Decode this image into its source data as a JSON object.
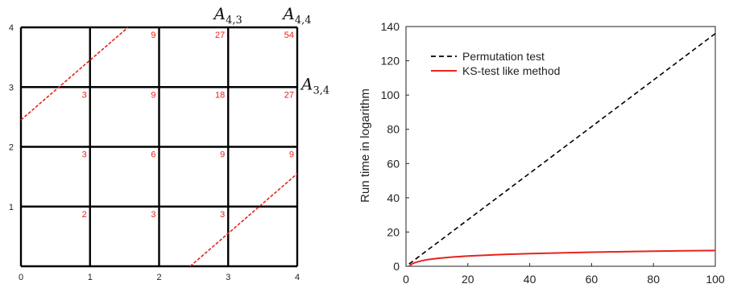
{
  "chart_data": [
    {
      "type": "grid",
      "xlim": [
        0,
        4
      ],
      "ylim": [
        0,
        4
      ],
      "x_ticks": [
        "0",
        "1",
        "2",
        "3",
        "4"
      ],
      "y_ticks": [
        "0",
        "1",
        "2",
        "3",
        "4"
      ],
      "cell_labels": [
        {
          "col": 1,
          "row": 1,
          "value": "2"
        },
        {
          "col": 2,
          "row": 1,
          "value": "3"
        },
        {
          "col": 3,
          "row": 1,
          "value": "3"
        },
        {
          "col": 1,
          "row": 2,
          "value": "3"
        },
        {
          "col": 2,
          "row": 2,
          "value": "6"
        },
        {
          "col": 3,
          "row": 2,
          "value": "9"
        },
        {
          "col": 4,
          "row": 2,
          "value": "9"
        },
        {
          "col": 1,
          "row": 3,
          "value": "3"
        },
        {
          "col": 2,
          "row": 3,
          "value": "9"
        },
        {
          "col": 3,
          "row": 3,
          "value": "18"
        },
        {
          "col": 4,
          "row": 3,
          "value": "27"
        },
        {
          "col": 2,
          "row": 4,
          "value": "9"
        },
        {
          "col": 3,
          "row": 4,
          "value": "27"
        },
        {
          "col": 4,
          "row": 4,
          "value": "54"
        }
      ],
      "corner_labels": [
        {
          "base": "A",
          "sub": "4,3",
          "x": 3,
          "y": 4
        },
        {
          "base": "A",
          "sub": "4,4",
          "x": 4,
          "y": 4
        },
        {
          "base": "A",
          "sub": "3,4",
          "x": 4,
          "y": 3
        }
      ],
      "dashed_lines": [
        {
          "x": [
            0,
            1.55
          ],
          "y": [
            2.45,
            4.0
          ]
        },
        {
          "x": [
            2.45,
            4.0
          ],
          "y": [
            0,
            1.55
          ]
        }
      ],
      "colors": {
        "grid": "#000000",
        "labels": "#e8231c",
        "dashed": "#e8231c"
      }
    },
    {
      "type": "line",
      "xlabel": "",
      "ylabel": "Run time in logarithm",
      "xlim": [
        0,
        100
      ],
      "ylim": [
        0,
        140
      ],
      "x_ticks": [
        0,
        20,
        40,
        60,
        80,
        100
      ],
      "y_ticks": [
        0,
        20,
        40,
        60,
        80,
        100,
        120,
        140
      ],
      "legend_position": "top-left",
      "series": [
        {
          "name": "Permutation test",
          "style": "dashed",
          "color": "#000000",
          "x": [
            1,
            100
          ],
          "y": [
            1.3,
            135.9
          ]
        },
        {
          "name": "KS-test like method",
          "style": "solid",
          "color": "#e8231c",
          "x": [
            1,
            2,
            3,
            5,
            7,
            10,
            15,
            20,
            30,
            40,
            50,
            60,
            70,
            80,
            90,
            100
          ],
          "y": [
            0,
            1.4,
            2.2,
            3.2,
            3.9,
            4.6,
            5.4,
            6.0,
            6.8,
            7.4,
            7.8,
            8.2,
            8.5,
            8.8,
            9.0,
            9.2
          ]
        }
      ]
    }
  ]
}
